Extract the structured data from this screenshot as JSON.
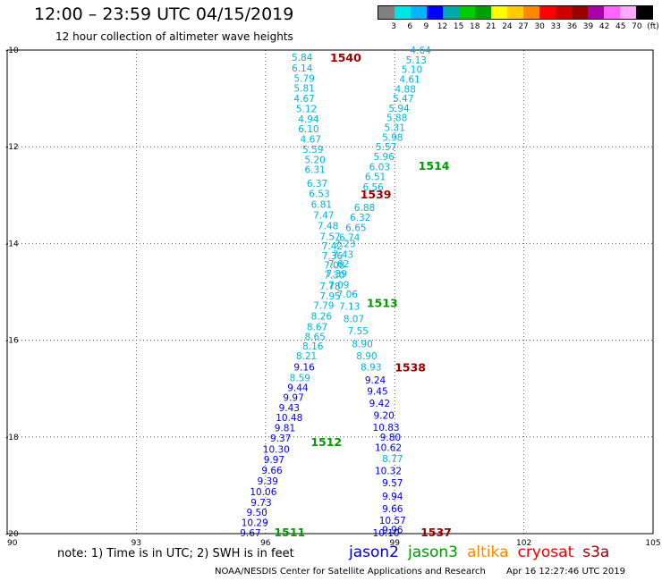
{
  "header": {
    "title": "12:00 – 23:59 UTC 04/15/2019",
    "subtitle": "12 hour collection of altimeter wave heights"
  },
  "legend": {
    "colors": [
      "#808080",
      "#00e5e5",
      "#00b4ff",
      "#0000ff",
      "#00aaaa",
      "#00cc00",
      "#00a000",
      "#ffff00",
      "#ffcc00",
      "#ff8800",
      "#ff0000",
      "#cc0000",
      "#990000",
      "#aa00aa",
      "#ff66ff",
      "#ffaaff",
      "#000000"
    ],
    "labels": [
      "3",
      "6",
      "9",
      "12",
      "15",
      "18",
      "21",
      "24",
      "27",
      "30",
      "33",
      "36",
      "39",
      "42",
      "45",
      "70",
      "(ft)"
    ]
  },
  "footer": {
    "note": "note: 1) Time is in UTC; 2) SWH is in feet",
    "satellites": [
      {
        "name": "jason2",
        "color": "#0000cc"
      },
      {
        "name": "jason3",
        "color": "#009900"
      },
      {
        "name": "altika",
        "color": "#ff8800"
      },
      {
        "name": "cryosat",
        "color": "#ee0000"
      },
      {
        "name": "s3a",
        "color": "#990000"
      }
    ],
    "credit": "NOAA/NESDIS Center for Satellite Applications and Research",
    "timestamp": "Apr 16 12:27:46 UTC 2019"
  },
  "chart_data": {
    "type": "scatter",
    "xlim": [
      90,
      105
    ],
    "ylim": [
      -20,
      -10
    ],
    "xticks": [
      "90",
      "93",
      "96",
      "99",
      "102",
      "105"
    ],
    "yticks": [
      "-10",
      "-12",
      "-14",
      "-16",
      "-18",
      "-20"
    ],
    "grid": true,
    "series": [
      {
        "name": "s3a",
        "pass_labels": [
          {
            "text": "1540",
            "lon": 97.5,
            "lat": -10.15
          },
          {
            "text": "1539",
            "lon": 98.2,
            "lat": -12.98
          },
          {
            "text": "1538",
            "lon": 99.0,
            "lat": -16.55
          },
          {
            "text": "1537",
            "lon": 99.6,
            "lat": -19.96
          }
        ],
        "label_color": "#990000",
        "points": [
          {
            "lon": 96.85,
            "lat": -10.15,
            "swh": "5.84"
          },
          {
            "lon": 96.85,
            "lat": -10.37,
            "swh": "6.14"
          },
          {
            "lon": 96.9,
            "lat": -10.58,
            "swh": "5.79"
          },
          {
            "lon": 96.9,
            "lat": -10.79,
            "swh": "5.81"
          },
          {
            "lon": 96.9,
            "lat": -11.0,
            "swh": "4.67"
          },
          {
            "lon": 96.95,
            "lat": -11.21,
            "swh": "5.12"
          },
          {
            "lon": 97.0,
            "lat": -11.42,
            "swh": "4.94"
          },
          {
            "lon": 97.0,
            "lat": -11.63,
            "swh": "6.10"
          },
          {
            "lon": 97.05,
            "lat": -11.84,
            "swh": "4.67"
          },
          {
            "lon": 97.1,
            "lat": -12.05,
            "swh": "5.59"
          },
          {
            "lon": 97.15,
            "lat": -12.26,
            "swh": "5.20"
          },
          {
            "lon": 97.15,
            "lat": -12.47,
            "swh": "6.31"
          },
          {
            "lon": 97.2,
            "lat": -12.75,
            "swh": "6.37"
          },
          {
            "lon": 97.25,
            "lat": -12.97,
            "swh": "6.53"
          },
          {
            "lon": 97.3,
            "lat": -13.19,
            "swh": "6.81"
          },
          {
            "lon": 97.35,
            "lat": -13.41,
            "swh": "7.47"
          },
          {
            "lon": 97.45,
            "lat": -13.63,
            "swh": "7.48"
          },
          {
            "lon": 97.5,
            "lat": -13.85,
            "swh": "7.57"
          },
          {
            "lon": 97.55,
            "lat": -14.05,
            "swh": "7.42"
          },
          {
            "lon": 97.55,
            "lat": -14.25,
            "swh": "7.36"
          },
          {
            "lon": 97.6,
            "lat": -14.45,
            "swh": "7.08"
          },
          {
            "lon": 97.6,
            "lat": -14.65,
            "swh": "7.30"
          },
          {
            "lon": 97.5,
            "lat": -14.88,
            "swh": "7.78"
          },
          {
            "lon": 97.5,
            "lat": -15.08,
            "swh": "7.95"
          },
          {
            "lon": 97.35,
            "lat": -15.28,
            "swh": "7.79"
          },
          {
            "lon": 97.3,
            "lat": -15.5,
            "swh": "8.26"
          },
          {
            "lon": 97.2,
            "lat": -15.72,
            "swh": "8.67"
          },
          {
            "lon": 97.15,
            "lat": -15.92,
            "swh": "8.65"
          },
          {
            "lon": 97.1,
            "lat": -16.12,
            "swh": "8.16"
          },
          {
            "lon": 96.95,
            "lat": -16.32,
            "swh": "8.21"
          },
          {
            "lon": 96.9,
            "lat": -16.55,
            "swh": "9.16"
          },
          {
            "lon": 96.8,
            "lat": -16.77,
            "swh": "8.59"
          },
          {
            "lon": 96.75,
            "lat": -16.98,
            "swh": "9.44"
          },
          {
            "lon": 96.65,
            "lat": -17.18,
            "swh": "9.97"
          },
          {
            "lon": 96.55,
            "lat": -17.39,
            "swh": "9.43"
          },
          {
            "lon": 96.55,
            "lat": -17.6,
            "swh": "10.48"
          },
          {
            "lon": 96.45,
            "lat": -17.81,
            "swh": "9.81"
          },
          {
            "lon": 96.35,
            "lat": -18.02,
            "swh": "9.37"
          },
          {
            "lon": 96.25,
            "lat": -18.25,
            "swh": "10.30"
          },
          {
            "lon": 96.2,
            "lat": -18.47,
            "swh": "9.97"
          },
          {
            "lon": 96.15,
            "lat": -18.69,
            "swh": "9.66"
          },
          {
            "lon": 96.05,
            "lat": -18.91,
            "swh": "9.39"
          },
          {
            "lon": 95.95,
            "lat": -19.13,
            "swh": "10.06"
          },
          {
            "lon": 95.9,
            "lat": -19.35,
            "swh": "9.73"
          },
          {
            "lon": 95.8,
            "lat": -19.56,
            "swh": "9.50"
          },
          {
            "lon": 95.75,
            "lat": -19.77,
            "swh": "10.29"
          },
          {
            "lon": 95.65,
            "lat": -19.98,
            "swh": "9.67"
          }
        ]
      },
      {
        "name": "jason3",
        "pass_labels": [
          {
            "text": "1514",
            "lon": 99.55,
            "lat": -12.38
          },
          {
            "text": "1513",
            "lon": 98.35,
            "lat": -15.22
          },
          {
            "text": "1512",
            "lon": 97.05,
            "lat": -18.1
          },
          {
            "text": "1511",
            "lon": 96.2,
            "lat": -19.96
          }
        ],
        "label_color": "#009900",
        "points": [
          {
            "lon": 99.6,
            "lat": -10.0,
            "swh": "4.64"
          },
          {
            "lon": 99.5,
            "lat": -10.2,
            "swh": "5.13"
          },
          {
            "lon": 99.4,
            "lat": -10.4,
            "swh": "5.10"
          },
          {
            "lon": 99.35,
            "lat": -10.6,
            "swh": "4.61"
          },
          {
            "lon": 99.25,
            "lat": -10.8,
            "swh": "4.88"
          },
          {
            "lon": 99.2,
            "lat": -11.0,
            "swh": "5.47"
          },
          {
            "lon": 99.1,
            "lat": -11.2,
            "swh": "5.94"
          },
          {
            "lon": 99.05,
            "lat": -11.4,
            "swh": "5.88"
          },
          {
            "lon": 99.0,
            "lat": -11.6,
            "swh": "5.31"
          },
          {
            "lon": 98.95,
            "lat": -11.8,
            "swh": "5.98"
          },
          {
            "lon": 98.8,
            "lat": -12.0,
            "swh": "5.57"
          },
          {
            "lon": 98.75,
            "lat": -12.2,
            "swh": "5.96"
          },
          {
            "lon": 98.65,
            "lat": -12.41,
            "swh": "6.03"
          },
          {
            "lon": 98.55,
            "lat": -12.62,
            "swh": "6.51"
          },
          {
            "lon": 98.5,
            "lat": -12.83,
            "swh": "6.56"
          },
          {
            "lon": 98.3,
            "lat": -13.25,
            "swh": "6.88"
          },
          {
            "lon": 98.2,
            "lat": -13.46,
            "swh": "6.32"
          },
          {
            "lon": 98.1,
            "lat": -13.67,
            "swh": "6.65"
          },
          {
            "lon": 97.95,
            "lat": -13.87,
            "swh": "6.74"
          },
          {
            "lon": 97.85,
            "lat": -14.0,
            "swh": "7.23"
          },
          {
            "lon": 97.8,
            "lat": -14.22,
            "swh": "7.43"
          },
          {
            "lon": 97.7,
            "lat": -14.42,
            "swh": "7.62"
          },
          {
            "lon": 97.65,
            "lat": -14.62,
            "swh": "7.39"
          },
          {
            "lon": 97.7,
            "lat": -14.85,
            "swh": "7.09"
          },
          {
            "lon": 97.9,
            "lat": -15.05,
            "swh": "7.06"
          },
          {
            "lon": 97.95,
            "lat": -15.3,
            "swh": "7.13"
          },
          {
            "lon": 98.05,
            "lat": -15.55,
            "swh": "8.07"
          },
          {
            "lon": 98.15,
            "lat": -15.8,
            "swh": "7.55"
          },
          {
            "lon": 98.25,
            "lat": -16.07,
            "swh": "8.90"
          },
          {
            "lon": 98.35,
            "lat": -16.32,
            "swh": "8.90"
          },
          {
            "lon": 98.45,
            "lat": -16.55,
            "swh": "8.93"
          },
          {
            "lon": 98.55,
            "lat": -16.82,
            "swh": "9.24"
          },
          {
            "lon": 98.6,
            "lat": -17.05,
            "swh": "9.45"
          },
          {
            "lon": 98.65,
            "lat": -17.3,
            "swh": "9.42"
          },
          {
            "lon": 98.75,
            "lat": -17.55,
            "swh": "9.20"
          },
          {
            "lon": 98.8,
            "lat": -17.8,
            "swh": "10.83"
          },
          {
            "lon": 98.9,
            "lat": -18.0,
            "swh": "9.80"
          },
          {
            "lon": 98.85,
            "lat": -18.22,
            "swh": "10.62"
          },
          {
            "lon": 98.95,
            "lat": -18.45,
            "swh": "8.77"
          },
          {
            "lon": 98.85,
            "lat": -18.7,
            "swh": "10.32"
          },
          {
            "lon": 98.95,
            "lat": -18.95,
            "swh": "9.57"
          },
          {
            "lon": 98.95,
            "lat": -19.22,
            "swh": "9.94"
          },
          {
            "lon": 98.95,
            "lat": -19.48,
            "swh": "9.66"
          },
          {
            "lon": 98.95,
            "lat": -19.72,
            "swh": "10.57"
          },
          {
            "lon": 98.95,
            "lat": -19.92,
            "swh": "9.96"
          },
          {
            "lon": 98.8,
            "lat": -19.98,
            "swh": "10.10"
          }
        ]
      }
    ]
  }
}
